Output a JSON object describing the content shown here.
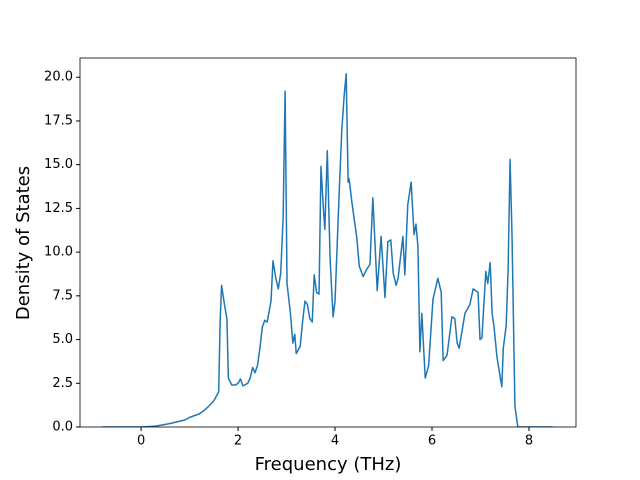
{
  "chart_data": {
    "type": "line",
    "xlabel": "Frequency (THz)",
    "ylabel": "Density of States",
    "x": [
      -0.8,
      0,
      0.3,
      0.6,
      0.9,
      1.0,
      1.2,
      1.3,
      1.4,
      1.5,
      1.6,
      1.63,
      1.66,
      1.72,
      1.77,
      1.8,
      1.87,
      1.95,
      2.0,
      2.05,
      2.1,
      2.2,
      2.25,
      2.3,
      2.35,
      2.4,
      2.45,
      2.5,
      2.55,
      2.6,
      2.68,
      2.72,
      2.78,
      2.83,
      2.88,
      2.93,
      2.97,
      3.01,
      3.08,
      3.13,
      3.17,
      3.2,
      3.28,
      3.33,
      3.38,
      3.43,
      3.48,
      3.53,
      3.57,
      3.62,
      3.67,
      3.71,
      3.76,
      3.79,
      3.84,
      3.9,
      3.96,
      4.0,
      4.08,
      4.14,
      4.19,
      4.23,
      4.27,
      4.29,
      4.35,
      4.45,
      4.5,
      4.58,
      4.65,
      4.72,
      4.78,
      4.87,
      4.95,
      5.03,
      5.09,
      5.15,
      5.2,
      5.26,
      5.3,
      5.4,
      5.44,
      5.5,
      5.57,
      5.63,
      5.67,
      5.71,
      5.75,
      5.79,
      5.86,
      5.93,
      6.02,
      6.12,
      6.19,
      6.23,
      6.31,
      6.41,
      6.47,
      6.52,
      6.56,
      6.68,
      6.78,
      6.85,
      6.95,
      6.99,
      7.03,
      7.11,
      7.15,
      7.2,
      7.24,
      7.28,
      7.34,
      7.44,
      7.47,
      7.53,
      7.57,
      7.61,
      7.65,
      7.71,
      7.77,
      8.49
    ],
    "series": [
      {
        "name": "DOS",
        "color": "#1f77b4",
        "values": [
          0,
          0,
          0.05,
          0.2,
          0.4,
          0.55,
          0.75,
          0.95,
          1.2,
          1.5,
          2.0,
          6.0,
          8.1,
          7.0,
          6.2,
          2.8,
          2.4,
          2.4,
          2.5,
          2.75,
          2.35,
          2.5,
          2.8,
          3.4,
          3.1,
          3.5,
          4.5,
          5.7,
          6.1,
          6.0,
          7.2,
          9.5,
          8.5,
          7.9,
          8.8,
          12,
          19.2,
          8.2,
          6.5,
          4.8,
          5.3,
          4.2,
          4.6,
          6.0,
          7.2,
          7.0,
          6.2,
          6.0,
          8.7,
          7.7,
          7.6,
          14.9,
          12.5,
          11.3,
          15.8,
          9.5,
          6.3,
          7.2,
          13,
          17,
          19,
          20.2,
          14,
          14.2,
          12.8,
          10.8,
          9.2,
          8.6,
          9.0,
          9.3,
          13.1,
          7.8,
          10.9,
          7.4,
          10.6,
          10.7,
          8.8,
          8.1,
          8.5,
          10.9,
          8.7,
          12.7,
          14,
          11,
          11.6,
          10.3,
          4.3,
          6.5,
          2.8,
          3.5,
          7.3,
          8.5,
          7.7,
          3.8,
          4.1,
          6.3,
          6.2,
          4.8,
          4.5,
          6.5,
          7.0,
          7.9,
          7.7,
          5.0,
          5.1,
          8.9,
          8.2,
          9.4,
          6.5,
          5.7,
          4.0,
          2.3,
          4.5,
          5.8,
          9.0,
          15.3,
          11,
          1.2,
          0,
          0
        ]
      }
    ],
    "xlim": [
      -1.26,
      8.97
    ],
    "ylim": [
      0,
      21.1
    ],
    "xticks": [
      0,
      2,
      4,
      6,
      8
    ],
    "yticks": [
      {
        "value": 0,
        "label": "0.0"
      },
      {
        "value": 2.5,
        "label": "2.5"
      },
      {
        "value": 5,
        "label": "5.0"
      },
      {
        "value": 7.5,
        "label": "7.5"
      },
      {
        "value": 10,
        "label": "10.0"
      },
      {
        "value": 12.5,
        "label": "12.5"
      },
      {
        "value": 15,
        "label": "15.0"
      },
      {
        "value": 17.5,
        "label": "17.5"
      },
      {
        "value": 20,
        "label": "20.0"
      }
    ]
  }
}
